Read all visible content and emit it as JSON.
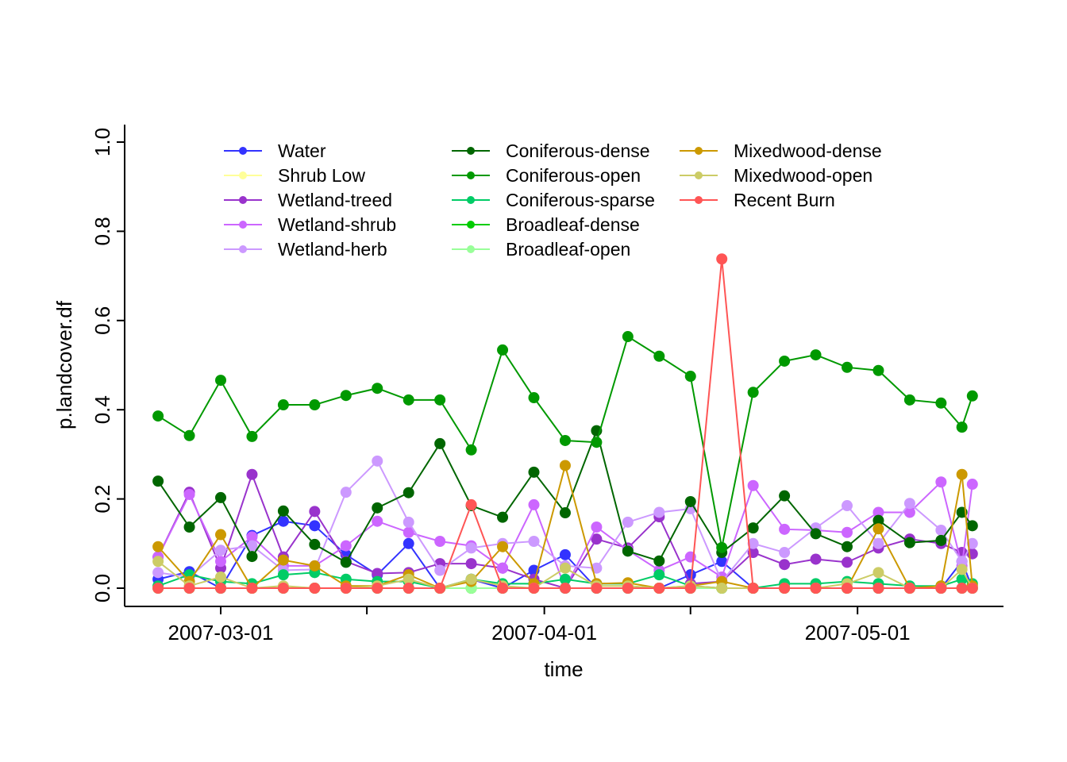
{
  "chart_data": {
    "type": "line",
    "title": "",
    "xlabel": "time",
    "ylabel": "p.landcover.df",
    "ylim": [
      0,
      1
    ],
    "xlim": [
      "2007-02-20",
      "2007-05-14"
    ],
    "grid": false,
    "legend_position": "top",
    "y_ticks": [
      "0.0",
      "0.2",
      "0.4",
      "0.6",
      "0.8",
      "1.0"
    ],
    "y_tick_values": [
      0,
      0.2,
      0.4,
      0.6,
      0.8,
      1.0
    ],
    "x_ticks": [
      {
        "date": "2007-03-01",
        "label": "2007-03-01"
      },
      {
        "date": "2007-03-15",
        "label": ""
      },
      {
        "date": "2007-04-01",
        "label": "2007-04-01"
      },
      {
        "date": "2007-04-15",
        "label": ""
      },
      {
        "date": "2007-05-01",
        "label": "2007-05-01"
      }
    ],
    "x": [
      "2007-02-23",
      "2007-02-26",
      "2007-03-01",
      "2007-03-04",
      "2007-03-07",
      "2007-03-10",
      "2007-03-13",
      "2007-03-16",
      "2007-03-19",
      "2007-03-22",
      "2007-03-25",
      "2007-03-28",
      "2007-03-31",
      "2007-04-03",
      "2007-04-06",
      "2007-04-09",
      "2007-04-12",
      "2007-04-15",
      "2007-04-18",
      "2007-04-21",
      "2007-04-24",
      "2007-04-27",
      "2007-04-30",
      "2007-05-03",
      "2007-05-06",
      "2007-05-09",
      "2007-05-11",
      "2007-05-12"
    ],
    "series": [
      {
        "name": "Water",
        "color": "#3333ff",
        "values": [
          0.02,
          0.037,
          0.0,
          0.118,
          0.15,
          0.14,
          0.075,
          0.03,
          0.1,
          0.0,
          0.02,
          0.0,
          0.04,
          0.075,
          0.0,
          0.0,
          0.0,
          0.03,
          0.06,
          0.0,
          0.0,
          0.0,
          0.0,
          0.0,
          0.0,
          0.0,
          0.06,
          0.0
        ]
      },
      {
        "name": "Shrub Low",
        "color": "#ffff99",
        "values": [
          0,
          0,
          0,
          0,
          0,
          0,
          0,
          0,
          0,
          0,
          0,
          0,
          0,
          0,
          0,
          0,
          0,
          0,
          0,
          0,
          0,
          0,
          0,
          0,
          0,
          0,
          0,
          0
        ]
      },
      {
        "name": "Wetland-treed",
        "color": "#9933cc",
        "values": [
          0.07,
          0.215,
          0.045,
          0.255,
          0.07,
          0.172,
          0.06,
          0.033,
          0.035,
          0.055,
          0.055,
          0.045,
          0.02,
          0.0,
          0.11,
          0.09,
          0.16,
          0.01,
          0.015,
          0.08,
          0.053,
          0.065,
          0.058,
          0.09,
          0.11,
          0.1,
          0.08,
          0.077
        ]
      },
      {
        "name": "Wetland-shrub",
        "color": "#cc66ff",
        "values": [
          0.07,
          0.21,
          0.06,
          0.115,
          0.05,
          0.05,
          0.095,
          0.15,
          0.125,
          0.105,
          0.095,
          0.045,
          0.187,
          0.0,
          0.137,
          0.085,
          0.04,
          0.07,
          0.025,
          0.23,
          0.132,
          0.13,
          0.125,
          0.17,
          0.17,
          0.238,
          0.05,
          0.233
        ]
      },
      {
        "name": "Wetland-herb",
        "color": "#cc99ff",
        "values": [
          0.035,
          0.025,
          0.085,
          0.095,
          0.04,
          0.042,
          0.215,
          0.285,
          0.148,
          0.04,
          0.09,
          0.1,
          0.105,
          0.05,
          0.045,
          0.148,
          0.17,
          0.178,
          0.015,
          0.1,
          0.08,
          0.135,
          0.185,
          0.1,
          0.19,
          0.13,
          0.06,
          0.1
        ]
      },
      {
        "name": "Coniferous-dense",
        "color": "#006600",
        "values": [
          0.24,
          0.137,
          0.203,
          0.071,
          0.173,
          0.098,
          0.058,
          0.18,
          0.214,
          0.324,
          0.185,
          0.159,
          0.26,
          0.169,
          0.353,
          0.083,
          0.061,
          0.194,
          0.08,
          0.135,
          0.207,
          0.122,
          0.093,
          0.152,
          0.102,
          0.107,
          0.17,
          0.14
        ]
      },
      {
        "name": "Coniferous-open",
        "color": "#009900",
        "values": [
          0.386,
          0.342,
          0.466,
          0.34,
          0.411,
          0.411,
          0.432,
          0.448,
          0.422,
          0.422,
          0.31,
          0.534,
          0.427,
          0.331,
          0.327,
          0.564,
          0.52,
          0.475,
          0.091,
          0.439,
          0.509,
          0.523,
          0.495,
          0.488,
          0.422,
          0.415,
          0.361,
          0.431
        ]
      },
      {
        "name": "Coniferous-sparse",
        "color": "#00cc66",
        "values": [
          0.005,
          0.03,
          0.015,
          0.01,
          0.03,
          0.035,
          0.02,
          0.015,
          0.015,
          0.0,
          0.02,
          0.01,
          0.01,
          0.02,
          0.01,
          0.01,
          0.03,
          0.005,
          0.0,
          0.0,
          0.01,
          0.01,
          0.015,
          0.01,
          0.005,
          0.005,
          0.02,
          0.01
        ]
      },
      {
        "name": "Broadleaf-dense",
        "color": "#00cc00",
        "values": [
          0,
          0,
          0,
          0,
          0,
          0,
          0,
          0,
          0,
          0,
          0,
          0,
          0,
          0,
          0,
          0,
          0,
          0,
          0,
          0,
          0,
          0,
          0,
          0,
          0,
          0,
          0,
          0
        ]
      },
      {
        "name": "Broadleaf-open",
        "color": "#99ff99",
        "values": [
          0,
          0,
          0,
          0,
          0,
          0,
          0,
          0,
          0,
          0,
          -0.002,
          0,
          0,
          0,
          0,
          0,
          0,
          0,
          0.0,
          0,
          0,
          0,
          0,
          0,
          0,
          0,
          0,
          0
        ]
      },
      {
        "name": "Mixedwood-dense",
        "color": "#cc9900",
        "values": [
          0.093,
          0.015,
          0.12,
          0.0,
          0.063,
          0.05,
          0.005,
          0.005,
          0.03,
          0.0,
          0.015,
          0.093,
          0.01,
          0.275,
          0.01,
          0.012,
          0.0,
          0.005,
          0.015,
          0.0,
          0.0,
          0.0,
          0.0,
          0.133,
          0.0,
          0.005,
          0.255,
          0.005
        ]
      },
      {
        "name": "Mixedwood-open",
        "color": "#cccc66",
        "values": [
          0.06,
          0.005,
          0.025,
          0.0,
          0.005,
          0.0,
          0.0,
          0.005,
          0.02,
          0.0,
          0.02,
          0.005,
          0.0,
          0.045,
          0.005,
          0.005,
          0.0,
          0.005,
          0.0,
          0.0,
          0.0,
          0.0,
          0.01,
          0.035,
          0.0,
          0.0,
          0.042,
          0.0
        ]
      },
      {
        "name": "Recent Burn",
        "color": "#ff5555",
        "values": [
          0,
          0,
          0,
          0,
          0,
          0,
          0,
          0,
          0,
          0,
          0.187,
          0,
          0,
          0,
          0,
          0,
          0,
          0,
          0.738,
          0,
          0,
          0,
          0,
          0,
          0,
          0,
          0,
          0
        ]
      }
    ]
  }
}
